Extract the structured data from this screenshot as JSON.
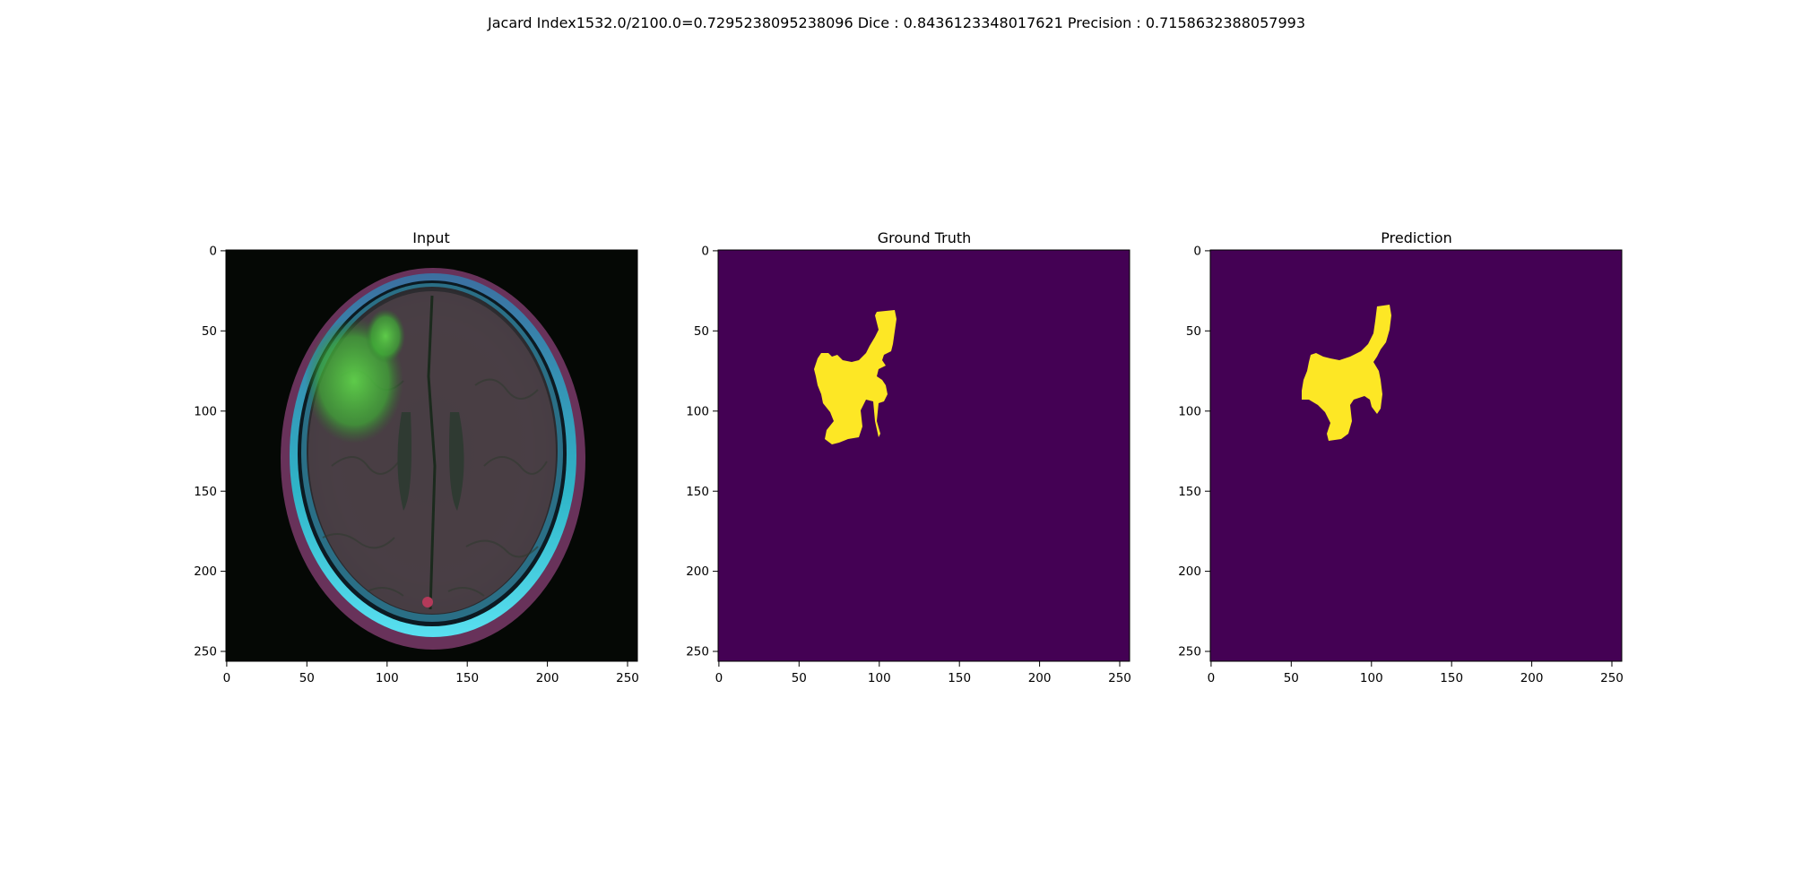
{
  "figure": {
    "suptitle": "Jacard Index1532.0/2100.0=0.7295238095238096 Dice : 0.8436123348017621 Precision : 0.7158632388057993",
    "colors": {
      "mask_background": "#440154",
      "mask_foreground": "#fde725",
      "image_background": "#050805"
    },
    "panels": [
      {
        "title": "Input",
        "kind": "mri-image"
      },
      {
        "title": "Ground Truth",
        "kind": "mask"
      },
      {
        "title": "Prediction",
        "kind": "mask"
      }
    ],
    "axes": {
      "x_ticks": [
        "0",
        "50",
        "100",
        "150",
        "200",
        "250"
      ],
      "y_ticks": [
        "0",
        "50",
        "100",
        "150",
        "200",
        "250"
      ],
      "extent": [
        0,
        256
      ]
    }
  }
}
